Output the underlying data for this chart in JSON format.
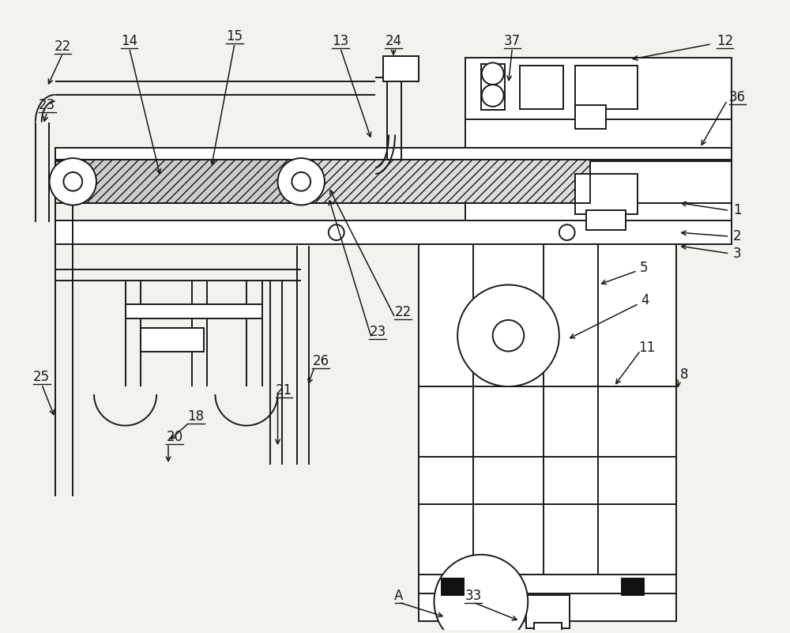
{
  "bg_color": "#f2f2ee",
  "line_color": "#1a1a1a",
  "lw": 1.4,
  "lw_thin": 1.0,
  "fs": 12,
  "white": "#ffffff",
  "gray_hatch": "#bbbbbb"
}
